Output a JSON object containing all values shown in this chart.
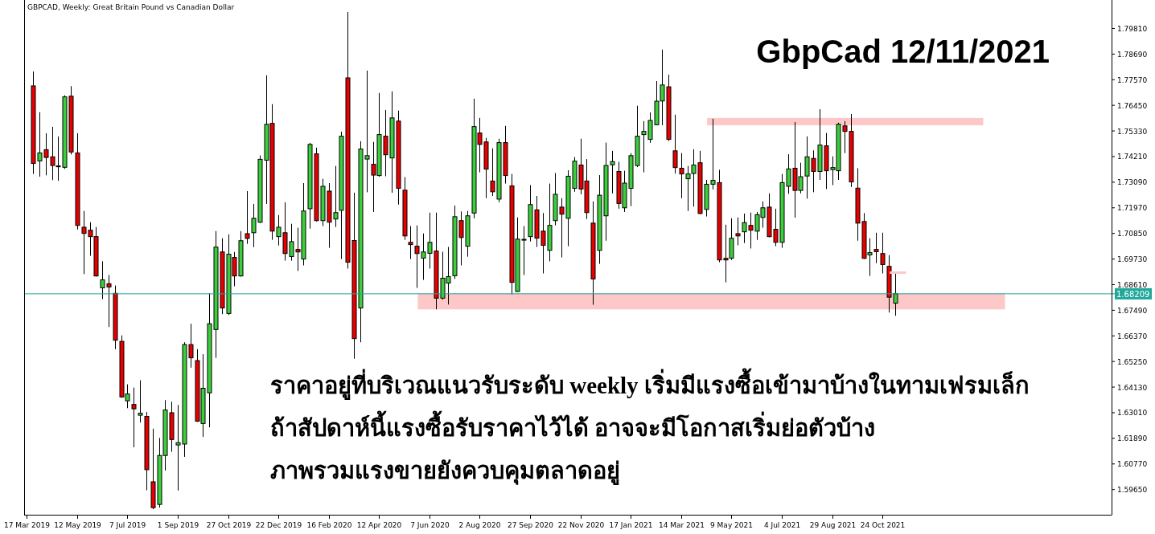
{
  "chart_data": {
    "type": "candlestick",
    "title": "GbpCad 12/11/2021",
    "subtitle": "GBPCAD, Weekly:  Great Britain Pound vs Canadian Dollar",
    "annotations": [
      "ราคาอยู่ที่บริเวณแนวรับระดับ weekly เริ่มมีแรงซื้อเข้ามาบ้างในทามเฟรมเล็ก",
      "ถ้าสัปดาห์นี้แรงซื้อรับราคาไว้ได้ อาจจะมีโอกาสเริ่มย่อตัวบ้าง",
      "ภาพรวมแรงขายยังควบคุมตลาดอยู่"
    ],
    "xlim": [
      "2019-03-14",
      "2022-07-06"
    ],
    "ylim": [
      1.5855,
      1.8102
    ],
    "xticks": [
      {
        "value": "2019-03-17",
        "label": "17 Mar 2019"
      },
      {
        "value": "2019-05-12",
        "label": "12 May 2019"
      },
      {
        "value": "2019-07-07",
        "label": "7 Jul 2019"
      },
      {
        "value": "2019-09-01",
        "label": "1 Sep 2019"
      },
      {
        "value": "2019-10-27",
        "label": "27 Oct 2019"
      },
      {
        "value": "2019-12-22",
        "label": "22 Dec 2019"
      },
      {
        "value": "2020-02-16",
        "label": "16 Feb 2020"
      },
      {
        "value": "2020-04-12",
        "label": "12 Apr 2020"
      },
      {
        "value": "2020-06-07",
        "label": "7 Jun 2020"
      },
      {
        "value": "2020-08-02",
        "label": "2 Aug 2020"
      },
      {
        "value": "2020-09-27",
        "label": "27 Sep 2020"
      },
      {
        "value": "2020-11-22",
        "label": "22 Nov 2020"
      },
      {
        "value": "2021-01-17",
        "label": "17 Jan 2021"
      },
      {
        "value": "2021-03-14",
        "label": "14 Mar 2021"
      },
      {
        "value": "2021-05-09",
        "label": "9 May 2021"
      },
      {
        "value": "2021-07-04",
        "label": "4 Jul 2021"
      },
      {
        "value": "2021-08-29",
        "label": "29 Aug 2021"
      },
      {
        "value": "2021-10-24",
        "label": "24 Oct 2021"
      }
    ],
    "yticks": [
      {
        "value": 1.5965,
        "label": "1.59650"
      },
      {
        "value": 1.6077,
        "label": "1.60770"
      },
      {
        "value": 1.6189,
        "label": "1.61890"
      },
      {
        "value": 1.6301,
        "label": "1.63010"
      },
      {
        "value": 1.6413,
        "label": "1.64130"
      },
      {
        "value": 1.6525,
        "label": "1.65250"
      },
      {
        "value": 1.6637,
        "label": "1.66370"
      },
      {
        "value": 1.6749,
        "label": "1.67490"
      },
      {
        "value": 1.6861,
        "label": "1.68610"
      },
      {
        "value": 1.6973,
        "label": "1.69730"
      },
      {
        "value": 1.7085,
        "label": "1.70850"
      },
      {
        "value": 1.7197,
        "label": "1.71970"
      },
      {
        "value": 1.7309,
        "label": "1.73090"
      },
      {
        "value": 1.7421,
        "label": "1.74210"
      },
      {
        "value": 1.7533,
        "label": "1.75330"
      },
      {
        "value": 1.7645,
        "label": "1.76450"
      },
      {
        "value": 1.7757,
        "label": "1.77570"
      },
      {
        "value": 1.7869,
        "label": "1.78690"
      },
      {
        "value": 1.7981,
        "label": "1.79810"
      }
    ],
    "ref_lines": [
      {
        "axis": "y",
        "value": 1.68209,
        "label": "1.68209",
        "color": "#20a89a"
      }
    ],
    "bands": [
      {
        "axis": "y",
        "from": 1.67528,
        "to": 1.68229,
        "color": "#ffc8c8"
      },
      {
        "axis": "y",
        "from": 1.75576,
        "to": 1.75898,
        "color": "#ffc8c8"
      }
    ],
    "x": [
      "2019-03-24",
      "2019-03-31",
      "2019-04-07",
      "2019-04-14",
      "2019-04-21",
      "2019-04-28",
      "2019-05-05",
      "2019-05-12",
      "2019-05-19",
      "2019-05-26",
      "2019-06-02",
      "2019-06-09",
      "2019-06-16",
      "2019-06-23",
      "2019-06-30",
      "2019-07-07",
      "2019-07-14",
      "2019-07-21",
      "2019-07-28",
      "2019-08-04",
      "2019-08-11",
      "2019-08-18",
      "2019-08-25",
      "2019-09-01",
      "2019-09-08",
      "2019-09-15",
      "2019-09-22",
      "2019-09-29",
      "2019-10-06",
      "2019-10-13",
      "2019-10-20",
      "2019-10-27",
      "2019-11-03",
      "2019-11-10",
      "2019-11-17",
      "2019-11-24",
      "2019-12-01",
      "2019-12-08",
      "2019-12-15",
      "2019-12-22",
      "2019-12-29",
      "2020-01-05",
      "2020-01-12",
      "2020-01-19",
      "2020-01-26",
      "2020-02-02",
      "2020-02-09",
      "2020-02-16",
      "2020-02-23",
      "2020-03-01",
      "2020-03-08",
      "2020-03-15",
      "2020-03-22",
      "2020-03-29",
      "2020-04-05",
      "2020-04-12",
      "2020-04-19",
      "2020-04-26",
      "2020-05-03",
      "2020-05-10",
      "2020-05-17",
      "2020-05-24",
      "2020-05-31",
      "2020-06-07",
      "2020-06-14",
      "2020-06-21",
      "2020-06-28",
      "2020-07-05",
      "2020-07-12",
      "2020-07-19",
      "2020-07-26",
      "2020-08-02",
      "2020-08-09",
      "2020-08-16",
      "2020-08-23",
      "2020-08-30",
      "2020-09-06",
      "2020-09-13",
      "2020-09-20",
      "2020-09-27",
      "2020-10-04",
      "2020-10-11",
      "2020-10-18",
      "2020-10-25",
      "2020-11-01",
      "2020-11-08",
      "2020-11-15",
      "2020-11-22",
      "2020-11-29",
      "2020-12-06",
      "2020-12-13",
      "2020-12-20",
      "2020-12-27",
      "2021-01-03",
      "2021-01-10",
      "2021-01-17",
      "2021-01-24",
      "2021-01-31",
      "2021-02-07",
      "2021-02-14",
      "2021-02-21",
      "2021-02-28",
      "2021-03-07",
      "2021-03-14",
      "2021-03-21",
      "2021-03-28",
      "2021-04-04",
      "2021-04-11",
      "2021-04-18",
      "2021-04-25",
      "2021-05-02",
      "2021-05-09",
      "2021-05-16",
      "2021-05-23",
      "2021-05-30",
      "2021-06-06",
      "2021-06-13",
      "2021-06-20",
      "2021-06-27",
      "2021-07-04",
      "2021-07-11",
      "2021-07-18",
      "2021-07-25",
      "2021-08-01",
      "2021-08-08",
      "2021-08-15",
      "2021-08-22",
      "2021-08-29",
      "2021-09-05",
      "2021-09-12",
      "2021-09-19",
      "2021-09-26",
      "2021-10-03",
      "2021-10-10",
      "2021-10-17",
      "2021-10-24",
      "2021-10-31",
      "2021-11-07"
    ],
    "ohlc": [
      [
        1.773,
        1.7793,
        1.7345,
        1.7391
      ],
      [
        1.7402,
        1.7615,
        1.7333,
        1.7437
      ],
      [
        1.7451,
        1.7523,
        1.7339,
        1.7417
      ],
      [
        1.742,
        1.7551,
        1.7318,
        1.7382
      ],
      [
        1.738,
        1.7509,
        1.7315,
        1.7379
      ],
      [
        1.7374,
        1.7689,
        1.7367,
        1.7682
      ],
      [
        1.7685,
        1.7729,
        1.743,
        1.7441
      ],
      [
        1.7437,
        1.7523,
        1.7102,
        1.712
      ],
      [
        1.7112,
        1.7183,
        1.6907,
        1.7085
      ],
      [
        1.7099,
        1.7134,
        1.6987,
        1.7071
      ],
      [
        1.7071,
        1.7113,
        1.6896,
        1.6899
      ],
      [
        1.6847,
        1.6963,
        1.6798,
        1.6882
      ],
      [
        1.6865,
        1.6903,
        1.6676,
        1.6851
      ],
      [
        1.6823,
        1.6857,
        1.6579,
        1.6618
      ],
      [
        1.6613,
        1.6639,
        1.6366,
        1.637
      ],
      [
        1.6353,
        1.6425,
        1.6321,
        1.6383
      ],
      [
        1.6337,
        1.6411,
        1.615,
        1.6318
      ],
      [
        1.629,
        1.6443,
        1.6258,
        1.6299
      ],
      [
        1.6285,
        1.6304,
        1.5962,
        1.6052
      ],
      [
        1.5999,
        1.6231,
        1.5879,
        1.5886
      ],
      [
        1.59,
        1.6191,
        1.5886,
        1.6114
      ],
      [
        1.6114,
        1.6356,
        1.6048,
        1.6313
      ],
      [
        1.6301,
        1.6349,
        1.613,
        1.6184
      ],
      [
        1.616,
        1.6335,
        1.5961,
        1.617
      ],
      [
        1.6164,
        1.6609,
        1.6108,
        1.6599
      ],
      [
        1.6599,
        1.669,
        1.6498,
        1.6541
      ],
      [
        1.6529,
        1.6579,
        1.6261,
        1.6264
      ],
      [
        1.6254,
        1.6557,
        1.6195,
        1.6408
      ],
      [
        1.6388,
        1.6823,
        1.6237,
        1.669
      ],
      [
        1.6665,
        1.7095,
        1.6541,
        1.7025
      ],
      [
        1.7004,
        1.7064,
        1.6732,
        1.6759
      ],
      [
        1.6735,
        1.7081,
        1.6728,
        1.6994
      ],
      [
        1.698,
        1.7004,
        1.6854,
        1.6899
      ],
      [
        1.6899,
        1.7095,
        1.6896,
        1.7053
      ],
      [
        1.7084,
        1.727,
        1.7039,
        1.7063
      ],
      [
        1.7088,
        1.7214,
        1.7025,
        1.7151
      ],
      [
        1.7134,
        1.7426,
        1.713,
        1.7409
      ],
      [
        1.7405,
        1.7776,
        1.7214,
        1.7562
      ],
      [
        1.7566,
        1.765,
        1.7057,
        1.7095
      ],
      [
        1.7071,
        1.7165,
        1.7032,
        1.7112
      ],
      [
        1.7088,
        1.7221,
        1.6966,
        1.6997
      ],
      [
        1.6984,
        1.7127,
        1.6966,
        1.7049
      ],
      [
        1.7015,
        1.711,
        1.6921,
        1.7004
      ],
      [
        1.6973,
        1.7305,
        1.6945,
        1.7183
      ],
      [
        1.7193,
        1.7481,
        1.7106,
        1.7474
      ],
      [
        1.7433,
        1.746,
        1.7137,
        1.7141
      ],
      [
        1.7141,
        1.7324,
        1.7117,
        1.7291
      ],
      [
        1.727,
        1.7305,
        1.7022,
        1.7134
      ],
      [
        1.7148,
        1.738,
        1.7113,
        1.7176
      ],
      [
        1.7186,
        1.753,
        1.6973,
        1.751
      ],
      [
        1.7765,
        1.8053,
        1.6931,
        1.6959
      ],
      [
        1.7054,
        1.7263,
        1.6537,
        1.6625
      ],
      [
        1.6759,
        1.7488,
        1.6609,
        1.7454
      ],
      [
        1.741,
        1.7797,
        1.7265,
        1.7425
      ],
      [
        1.7387,
        1.7485,
        1.7179,
        1.734
      ],
      [
        1.7338,
        1.7699,
        1.7333,
        1.7517
      ],
      [
        1.751,
        1.7625,
        1.7335,
        1.7429
      ],
      [
        1.7415,
        1.7706,
        1.7263,
        1.759
      ],
      [
        1.7576,
        1.7622,
        1.7211,
        1.7282
      ],
      [
        1.7274,
        1.7331,
        1.7057,
        1.7074
      ],
      [
        1.7046,
        1.7117,
        1.6973,
        1.7036
      ],
      [
        1.7029,
        1.712,
        1.6847,
        1.6997
      ],
      [
        1.6977,
        1.7085,
        1.6882,
        1.7004
      ],
      [
        1.6998,
        1.7176,
        1.6931,
        1.7046
      ],
      [
        1.7008,
        1.7176,
        1.6753,
        1.6802
      ],
      [
        1.6802,
        1.7005,
        1.6795,
        1.6889
      ],
      [
        1.6868,
        1.7026,
        1.6774,
        1.6896
      ],
      [
        1.69,
        1.7207,
        1.6886,
        1.7158
      ],
      [
        1.7141,
        1.7181,
        1.6945,
        1.7067
      ],
      [
        1.7029,
        1.7183,
        1.6983,
        1.7162
      ],
      [
        1.7174,
        1.7674,
        1.7151,
        1.7552
      ],
      [
        1.7524,
        1.759,
        1.7352,
        1.7474
      ],
      [
        1.7485,
        1.7502,
        1.7239,
        1.7366
      ],
      [
        1.7314,
        1.7457,
        1.7249,
        1.7267
      ],
      [
        1.7235,
        1.7499,
        1.7221,
        1.7482
      ],
      [
        1.7482,
        1.7555,
        1.7303,
        1.7338
      ],
      [
        1.7293,
        1.7345,
        1.6819,
        1.6871
      ],
      [
        1.6831,
        1.7155,
        1.6829,
        1.706
      ],
      [
        1.7057,
        1.7117,
        1.6903,
        1.7059
      ],
      [
        1.7071,
        1.7296,
        1.705,
        1.7211
      ],
      [
        1.7188,
        1.7249,
        1.7026,
        1.7064
      ],
      [
        1.7095,
        1.7174,
        1.691,
        1.7033
      ],
      [
        1.7011,
        1.7303,
        1.6963,
        1.712
      ],
      [
        1.7141,
        1.7349,
        1.712,
        1.7256
      ],
      [
        1.72,
        1.7239,
        1.698,
        1.7169
      ],
      [
        1.7151,
        1.7361,
        1.7029,
        1.7335
      ],
      [
        1.7282,
        1.7419,
        1.7267,
        1.7401
      ],
      [
        1.7384,
        1.7499,
        1.7256,
        1.7279
      ],
      [
        1.7314,
        1.741,
        1.7148,
        1.7176
      ],
      [
        1.713,
        1.7225,
        1.6773,
        1.6886
      ],
      [
        1.7011,
        1.734,
        1.6952,
        1.7252
      ],
      [
        1.7162,
        1.7482,
        1.7053,
        1.7382
      ],
      [
        1.7385,
        1.7446,
        1.726,
        1.7399
      ],
      [
        1.7356,
        1.7398,
        1.7193,
        1.7216
      ],
      [
        1.7197,
        1.7359,
        1.7179,
        1.7305
      ],
      [
        1.7282,
        1.7436,
        1.7204,
        1.7425
      ],
      [
        1.7382,
        1.7643,
        1.7375,
        1.751
      ],
      [
        1.7517,
        1.7576,
        1.7352,
        1.7531
      ],
      [
        1.7496,
        1.7614,
        1.7481,
        1.7579
      ],
      [
        1.756,
        1.7751,
        1.7558,
        1.7663
      ],
      [
        1.7664,
        1.7889,
        1.7558,
        1.7734
      ],
      [
        1.7726,
        1.7779,
        1.7489,
        1.7496
      ],
      [
        1.7446,
        1.7604,
        1.7347,
        1.7373
      ],
      [
        1.737,
        1.7436,
        1.7239,
        1.7345
      ],
      [
        1.7324,
        1.738,
        1.7183,
        1.7345
      ],
      [
        1.7347,
        1.7453,
        1.7202,
        1.7384
      ],
      [
        1.7394,
        1.7446,
        1.7169,
        1.7172
      ],
      [
        1.719,
        1.7319,
        1.7159,
        1.73
      ],
      [
        1.73,
        1.7586,
        1.7277,
        1.7317
      ],
      [
        1.7307,
        1.7363,
        1.6959,
        1.6969
      ],
      [
        1.6976,
        1.7123,
        1.6871,
        1.6969
      ],
      [
        1.6977,
        1.7151,
        1.6969,
        1.7064
      ],
      [
        1.7084,
        1.7155,
        1.7033,
        1.7074
      ],
      [
        1.7092,
        1.7172,
        1.7043,
        1.7132
      ],
      [
        1.712,
        1.7176,
        1.7019,
        1.7099
      ],
      [
        1.7095,
        1.7179,
        1.7057,
        1.7167
      ],
      [
        1.7155,
        1.7225,
        1.711,
        1.7197
      ],
      [
        1.72,
        1.726,
        1.7068,
        1.7071
      ],
      [
        1.7103,
        1.7193,
        1.7029,
        1.7046
      ],
      [
        1.7046,
        1.7345,
        1.7022,
        1.7307
      ],
      [
        1.7291,
        1.7431,
        1.7258,
        1.7367
      ],
      [
        1.737,
        1.7572,
        1.7154,
        1.7273
      ],
      [
        1.7273,
        1.7394,
        1.726,
        1.7333
      ],
      [
        1.7336,
        1.7509,
        1.7237,
        1.742
      ],
      [
        1.7413,
        1.7448,
        1.7265,
        1.7356
      ],
      [
        1.7356,
        1.7628,
        1.7319,
        1.7471
      ],
      [
        1.7468,
        1.7524,
        1.7279,
        1.7359
      ],
      [
        1.7364,
        1.7422,
        1.7296,
        1.7373
      ],
      [
        1.7359,
        1.7569,
        1.7319,
        1.7562
      ],
      [
        1.7555,
        1.7576,
        1.7436,
        1.7531
      ],
      [
        1.7531,
        1.7607,
        1.7288,
        1.731
      ],
      [
        1.7283,
        1.737,
        1.7053,
        1.713
      ],
      [
        1.7137,
        1.7174,
        1.6973,
        1.6976
      ],
      [
        1.6991,
        1.7064,
        1.6899,
        1.7001
      ],
      [
        1.7015,
        1.7088,
        1.6955,
        1.7005
      ],
      [
        1.6997,
        1.7088,
        1.691,
        1.6949
      ],
      [
        1.6941,
        1.699,
        1.6739,
        1.6806
      ],
      [
        1.678,
        1.6914,
        1.6725,
        1.68209
      ]
    ]
  }
}
